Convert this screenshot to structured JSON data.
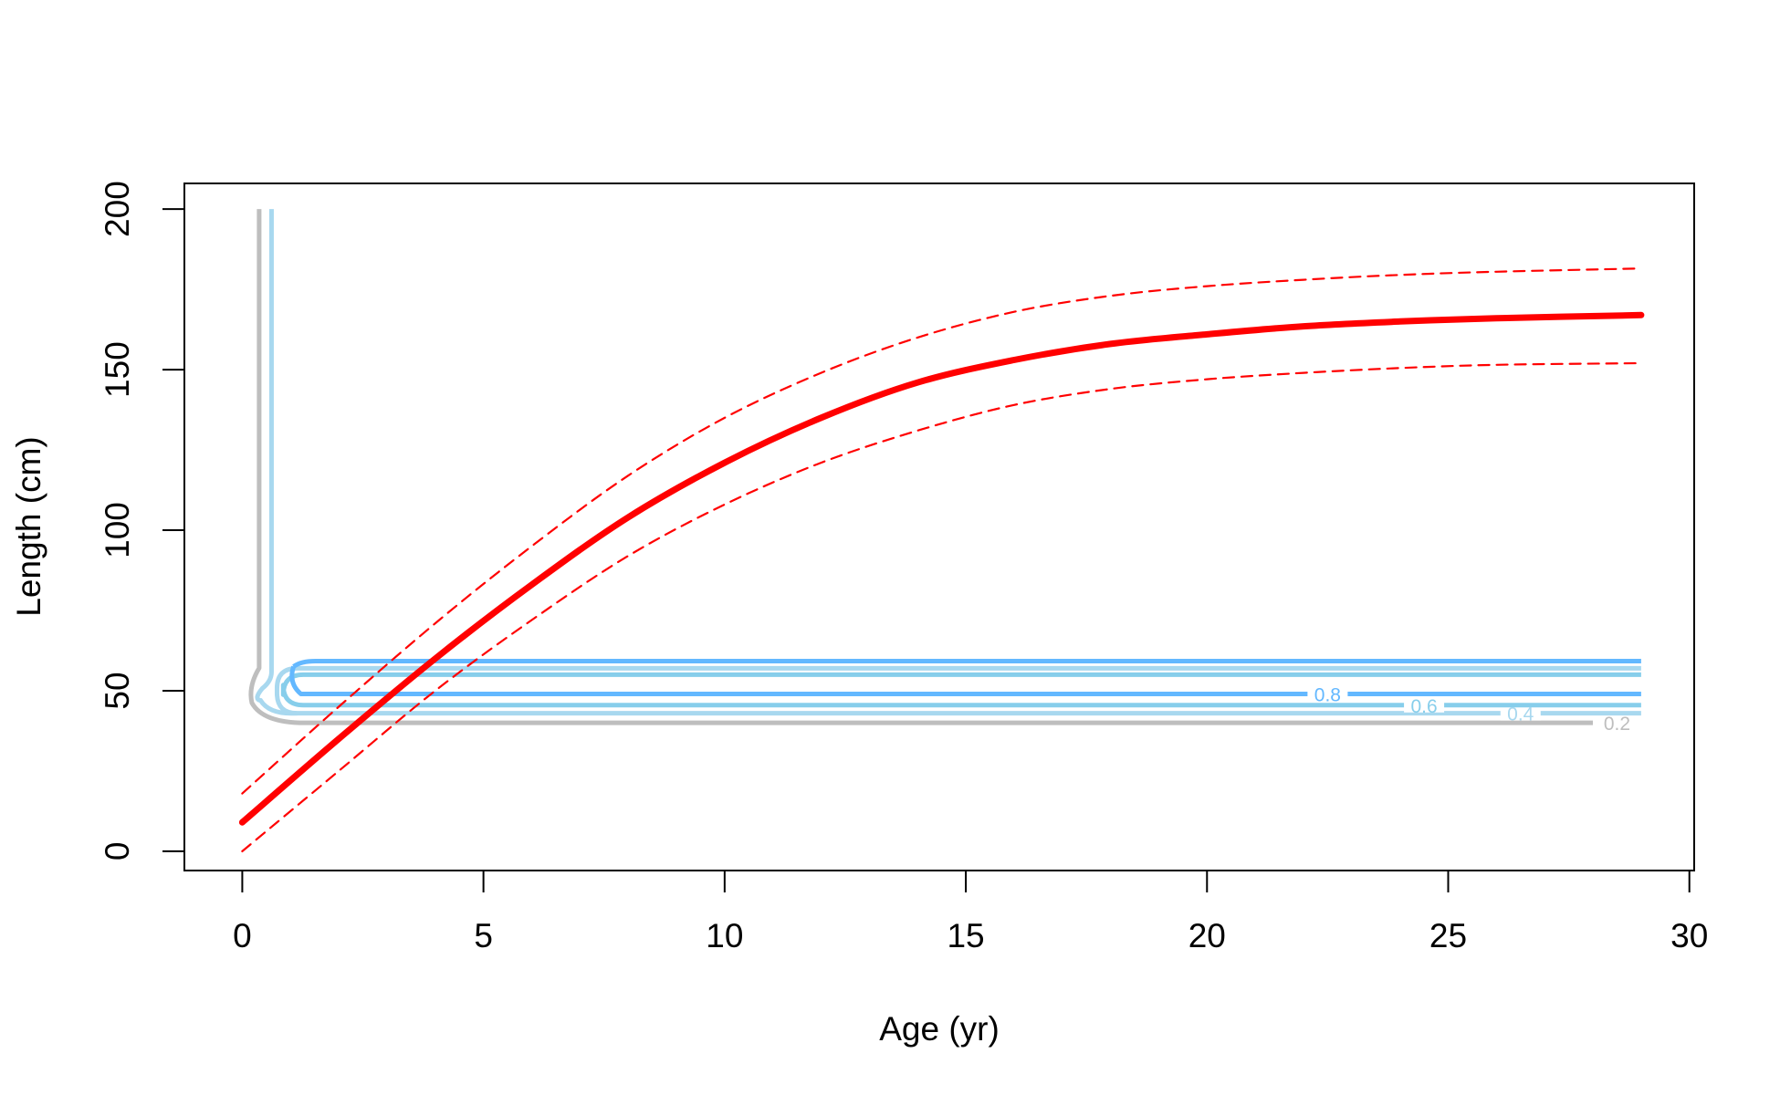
{
  "chart_data": {
    "type": "line",
    "title": "",
    "xlabel": "Age (yr)",
    "ylabel": "Length (cm)",
    "xlim": [
      -1.2,
      30.1
    ],
    "ylim": [
      -6,
      208
    ],
    "xticks": [
      0,
      5,
      10,
      15,
      20,
      25,
      30
    ],
    "yticks": [
      0,
      50,
      100,
      150,
      200
    ],
    "grid": false,
    "legend": "none",
    "colors": {
      "mean": "#ff0000",
      "interval": "#ff0000",
      "level_0_2": "#bebebe",
      "level_0_4": "#a8d8ef",
      "level_0_6": "#87ceeb",
      "level_0_8": "#63b8ff"
    },
    "series": [
      {
        "role": "mean",
        "x": [
          0,
          2,
          4,
          6,
          8,
          10,
          12,
          14,
          16,
          18,
          20,
          22,
          24,
          26,
          29
        ],
        "y": [
          9,
          35,
          60,
          83,
          104,
          121,
          135,
          146,
          153,
          158,
          161,
          163.5,
          165,
          166,
          167
        ]
      },
      {
        "role": "upper",
        "x": [
          0,
          2,
          4,
          6,
          8,
          10,
          12,
          14,
          16,
          18,
          20,
          22,
          24,
          26,
          29
        ],
        "y": [
          18,
          45,
          71,
          95,
          117,
          135,
          149,
          160,
          168,
          173,
          176,
          178,
          179.5,
          180.5,
          181.5
        ]
      },
      {
        "role": "lower",
        "x": [
          0,
          2,
          4,
          6,
          8,
          10,
          12,
          14,
          16,
          18,
          20,
          22,
          24,
          26,
          29
        ],
        "y": [
          0,
          25,
          50,
          72,
          92,
          108,
          121,
          131,
          139,
          144,
          147,
          149,
          150.5,
          151.5,
          152
        ]
      }
    ],
    "contours": [
      {
        "level": "0.2",
        "x_vertical": 0.35,
        "y_horizontal": 40,
        "x_end": 28,
        "color_key": "level_0_2"
      },
      {
        "level": "0.4",
        "x_vertical": 0.72,
        "y_horizontal": 43,
        "x_end": 29,
        "y_top": 57,
        "color_key": "level_0_4"
      },
      {
        "level": "0.6",
        "x_vertical": 0.85,
        "y_horizontal": 45.5,
        "x_end": 29,
        "y_top": 55,
        "color_key": "level_0_6"
      },
      {
        "level": "0.8",
        "x_vertical": 0.95,
        "y_horizontal": 49,
        "x_end": 29,
        "color_key": "level_0_8"
      }
    ]
  }
}
